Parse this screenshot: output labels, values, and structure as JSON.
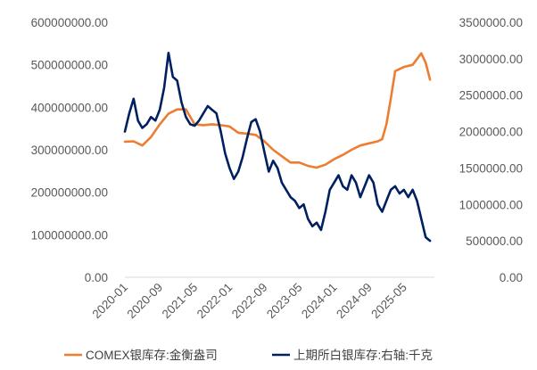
{
  "chart_data": {
    "type": "line",
    "title": "",
    "xlabel": "",
    "ylabel": "",
    "y2label": "",
    "x_tick_labels": [
      "2020-01",
      "2020-09",
      "2021-05",
      "2022-01",
      "2022-09",
      "2023-05",
      "2024-01",
      "2024-09",
      "2025-05"
    ],
    "x_range": [
      "2020-01",
      "2025-12"
    ],
    "y_left": {
      "range": [
        0,
        600000000
      ],
      "ticks": [
        "0.00",
        "100000000.00",
        "200000000.00",
        "300000000.00",
        "400000000.00",
        "500000000.00",
        "600000000.00"
      ]
    },
    "y_right": {
      "range": [
        0,
        3500000
      ],
      "ticks": [
        "0.00",
        "500000.00",
        "1000000.00",
        "1500000.00",
        "2000000.00",
        "2500000.00",
        "3000000.00",
        "3500000.00"
      ]
    },
    "grid": false,
    "legend_position": "bottom",
    "series": [
      {
        "name": "COMEX银库存:金衡盎司",
        "axis": "left",
        "color": "#ED7D31",
        "x": [
          "2020-01",
          "2020-03",
          "2020-05",
          "2020-07",
          "2020-09",
          "2020-11",
          "2021-01",
          "2021-03",
          "2021-05",
          "2021-07",
          "2021-09",
          "2021-11",
          "2022-01",
          "2022-03",
          "2022-05",
          "2022-07",
          "2022-09",
          "2022-11",
          "2023-01",
          "2023-03",
          "2023-05",
          "2023-07",
          "2023-09",
          "2023-11",
          "2024-01",
          "2024-03",
          "2024-05",
          "2024-07",
          "2024-09",
          "2024-11",
          "2024-12",
          "2025-01",
          "2025-02",
          "2025-03",
          "2025-05",
          "2025-07",
          "2025-09",
          "2025-10",
          "2025-11"
        ],
        "values": [
          319000000,
          320000000,
          310000000,
          330000000,
          360000000,
          385000000,
          395000000,
          395000000,
          360000000,
          358000000,
          360000000,
          358000000,
          355000000,
          340000000,
          338000000,
          335000000,
          320000000,
          300000000,
          285000000,
          270000000,
          270000000,
          262000000,
          258000000,
          265000000,
          278000000,
          288000000,
          300000000,
          310000000,
          315000000,
          320000000,
          325000000,
          360000000,
          420000000,
          485000000,
          495000000,
          500000000,
          527000000,
          505000000,
          465000000
        ]
      },
      {
        "name": "上期所白银库存:右轴:千克",
        "axis": "right",
        "color": "#002060",
        "x": [
          "2020-01",
          "2020-02",
          "2020-03",
          "2020-04",
          "2020-05",
          "2020-06",
          "2020-07",
          "2020-08",
          "2020-09",
          "2020-10",
          "2020-11",
          "2020-12",
          "2021-01",
          "2021-02",
          "2021-03",
          "2021-04",
          "2021-05",
          "2021-06",
          "2021-07",
          "2021-08",
          "2021-09",
          "2021-10",
          "2021-11",
          "2021-12",
          "2022-01",
          "2022-02",
          "2022-03",
          "2022-04",
          "2022-05",
          "2022-06",
          "2022-07",
          "2022-08",
          "2022-09",
          "2022-10",
          "2022-11",
          "2022-12",
          "2023-01",
          "2023-02",
          "2023-03",
          "2023-04",
          "2023-05",
          "2023-06",
          "2023-07",
          "2023-08",
          "2023-09",
          "2023-10",
          "2023-11",
          "2023-12",
          "2024-01",
          "2024-02",
          "2024-03",
          "2024-04",
          "2024-05",
          "2024-06",
          "2024-07",
          "2024-08",
          "2024-09",
          "2024-10",
          "2024-11",
          "2024-12",
          "2025-01",
          "2025-02",
          "2025-03",
          "2025-04",
          "2025-05",
          "2025-06",
          "2025-07",
          "2025-08",
          "2025-09",
          "2025-10",
          "2025-11"
        ],
        "values": [
          2000000,
          2250000,
          2450000,
          2150000,
          2050000,
          2100000,
          2200000,
          2150000,
          2300000,
          2600000,
          3080000,
          2750000,
          2700000,
          2400000,
          2200000,
          2100000,
          2080000,
          2150000,
          2250000,
          2350000,
          2300000,
          2250000,
          2000000,
          1700000,
          1500000,
          1350000,
          1450000,
          1650000,
          1900000,
          2130000,
          2170000,
          2000000,
          1720000,
          1450000,
          1600000,
          1500000,
          1300000,
          1200000,
          1100000,
          1050000,
          950000,
          1000000,
          800000,
          700000,
          750000,
          650000,
          900000,
          1200000,
          1300000,
          1400000,
          1250000,
          1200000,
          1400000,
          1300000,
          1100000,
          1250000,
          1400000,
          1300000,
          1000000,
          900000,
          1050000,
          1200000,
          1250000,
          1150000,
          1200000,
          1100000,
          1200000,
          1050000,
          800000,
          550000,
          500000
        ]
      }
    ]
  }
}
